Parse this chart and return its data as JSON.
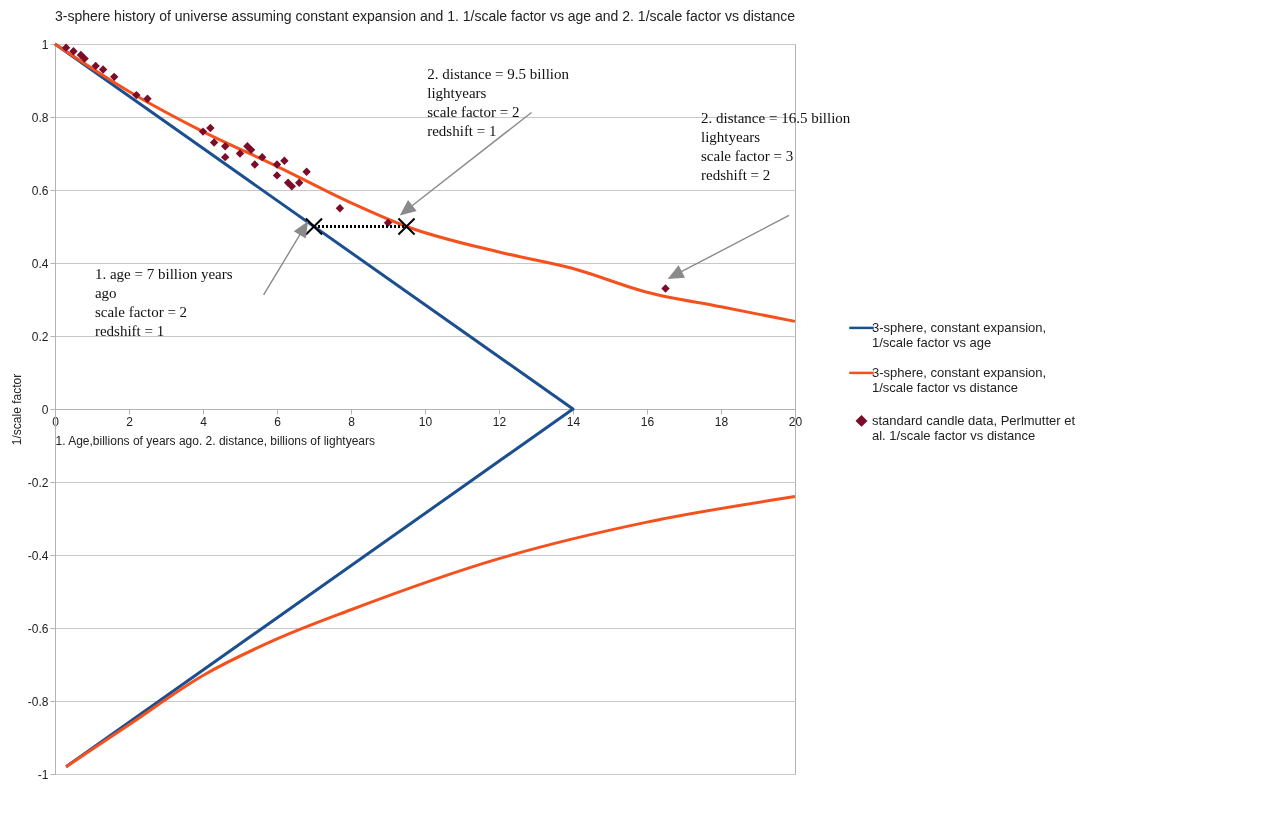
{
  "chart_data": {
    "type": "line",
    "title": "3-sphere history of universe assuming constant expansion and 1. 1/scale factor vs age and 2. 1/scale factor vs distance",
    "xlabel": "1. Age,billions of years ago. 2. distance, billions of lightyears",
    "ylabel": "1/scale factor",
    "xlim": [
      0,
      20
    ],
    "xticks": [
      0,
      2,
      4,
      6,
      8,
      10,
      12,
      14,
      16,
      18,
      20
    ],
    "ylim": [
      -1,
      1
    ],
    "yticks": [
      -1,
      -0.8,
      -0.6,
      -0.4,
      -0.2,
      0,
      0.2,
      0.4,
      0.6,
      0.8,
      1
    ],
    "grid": "y",
    "legend": "right",
    "series": [
      {
        "name": "3-sphere, constant expansion, 1/scale factor vs age",
        "color": "#1c4f8f",
        "x": [
          0,
          14,
          0.3
        ],
        "values": [
          1,
          0,
          -0.98
        ]
      },
      {
        "name": "3-sphere, constant expansion, 1/scale factor vs distance",
        "color": "#f4511e",
        "x": [
          0,
          2,
          4,
          6,
          8,
          9.5,
          12,
          14,
          16,
          18,
          20,
          null,
          0.3,
          2,
          4,
          6,
          8,
          12,
          16,
          20
        ],
        "values": [
          1,
          0.87,
          0.76,
          0.665,
          0.565,
          0.5,
          0.43,
          0.385,
          0.32,
          0.28,
          0.24,
          null,
          -0.98,
          -0.865,
          -0.73,
          -0.63,
          -0.55,
          -0.41,
          -0.31,
          -0.24
        ]
      },
      {
        "name": "standard candle data, Perlmutter et al. 1/scale factor vs distance",
        "type": "scatter",
        "marker": "diamond",
        "color": "#7b0c2a",
        "x": [
          0.3,
          0.5,
          0.7,
          0.8,
          1.1,
          1.3,
          1.6,
          2.2,
          2.5,
          4.0,
          4.2,
          4.3,
          4.6,
          4.6,
          5.0,
          5.2,
          5.3,
          5.4,
          5.6,
          6.0,
          6.0,
          6.2,
          6.3,
          6.4,
          6.6,
          6.8,
          7.7,
          9.0,
          16.5
        ],
        "values": [
          0.99,
          0.98,
          0.97,
          0.96,
          0.94,
          0.93,
          0.91,
          0.86,
          0.85,
          0.76,
          0.77,
          0.73,
          0.72,
          0.69,
          0.7,
          0.72,
          0.71,
          0.67,
          0.69,
          0.67,
          0.64,
          0.68,
          0.62,
          0.61,
          0.62,
          0.65,
          0.55,
          0.51,
          0.33
        ]
      },
      {
        "marker": "cross",
        "line_style": "dotted",
        "color": "#000000",
        "x": [
          7,
          9.5
        ],
        "values": [
          0.5,
          0.5
        ]
      }
    ],
    "annotations": [
      "1. age = 7 billion years ago\nscale factor = 2\nredshift = 1",
      "2. distance = 9.5 billion lightyears\nscale factor = 2\nredshift = 1",
      "2. distance = 16.5 billion lightyears\nscale factor = 3\nredshift = 2"
    ]
  }
}
